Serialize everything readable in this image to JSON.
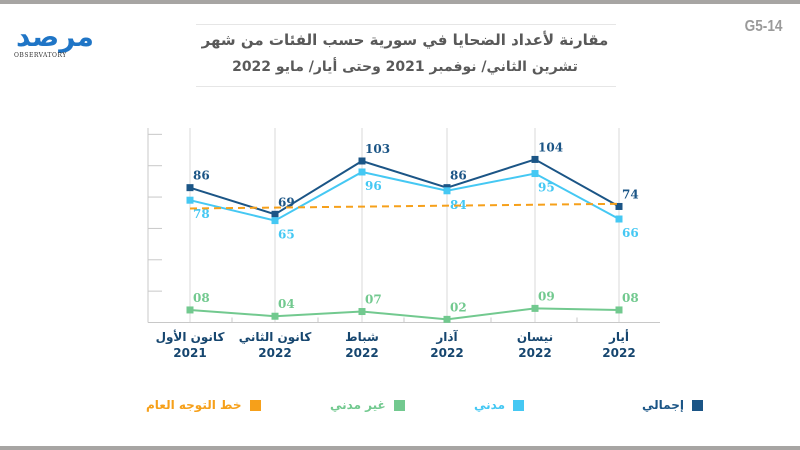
{
  "header": {
    "logo_text": "مرصد",
    "logo_subtext": "OBSERVATORY",
    "code": "G5-14",
    "title_line1": "مقارنة لأعداد الضحايا في سورية حسب الفئات من شهر",
    "title_line2": "تشرين الثاني/ نوفمبر 2021 وحتى   أيار/ مايو 2022"
  },
  "colors": {
    "total": "#1b5586",
    "civilian": "#45c8f3",
    "non_civilian": "#72c98f",
    "trend": "#f6a01a",
    "axis": "#c8c8c8"
  },
  "chart_data": {
    "type": "line",
    "title": "مقارنة لأعداد الضحايا في سورية حسب الفئات من شهر تشرين الثاني/ نوفمبر 2021 وحتى أيار/ مايو 2022",
    "xlabel": "",
    "ylabel": "",
    "ylim": [
      0,
      120
    ],
    "ytick_step": 20,
    "grid": "vertical",
    "legend_position": "bottom",
    "categories": [
      {
        "month": "كانون الأول",
        "year": "2021"
      },
      {
        "month": "كانون الثاني",
        "year": "2022"
      },
      {
        "month": "شباط",
        "year": "2022"
      },
      {
        "month": "آذار",
        "year": "2022"
      },
      {
        "month": "نيسان",
        "year": "2022"
      },
      {
        "month": "أيار",
        "year": "2022"
      }
    ],
    "series": [
      {
        "key": "total",
        "name": "إجمالي",
        "values": [
          86,
          69,
          103,
          86,
          104,
          74
        ],
        "labels": [
          "86",
          "69",
          "103",
          "86",
          "104",
          "74"
        ],
        "label_pos": "above"
      },
      {
        "key": "civilian",
        "name": "مدني",
        "values": [
          78,
          65,
          96,
          84,
          95,
          66
        ],
        "labels": [
          "78",
          "65",
          "96",
          "84",
          "95",
          "66"
        ],
        "label_pos": "below"
      },
      {
        "key": "non_civilian",
        "name": "غير مدني",
        "values": [
          8,
          4,
          7,
          2,
          9,
          8
        ],
        "labels": [
          "08",
          "04",
          "07",
          "02",
          "09",
          "08"
        ],
        "label_pos": "above"
      },
      {
        "key": "trend",
        "name": "خط التوجه العام",
        "values": [
          72.7,
          73.3,
          73.9,
          74.5,
          75.1,
          75.7
        ],
        "labels": [],
        "style": "dashed"
      }
    ]
  }
}
